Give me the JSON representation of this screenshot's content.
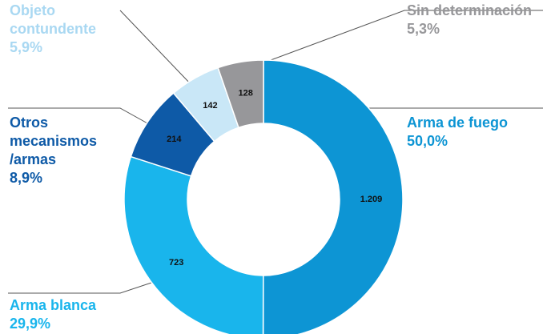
{
  "chart_data": {
    "type": "pie",
    "categories": [
      "Arma de fuego",
      "Arma blanca",
      "Otros mecanismos /armas",
      "Objeto contundente",
      "Sin determinación"
    ],
    "values": [
      1209,
      723,
      214,
      142,
      128
    ],
    "value_labels": [
      "1.209",
      "723",
      "214",
      "142",
      "128"
    ],
    "percentages": [
      50.0,
      29.9,
      8.9,
      5.9,
      5.3
    ],
    "percentage_labels": [
      "50,0%",
      "29,9%",
      "8,9%",
      "5,9%",
      "5,3%"
    ],
    "colors": [
      "#0d95d4",
      "#19b5ec",
      "#0e5aa7",
      "#c9e7f7",
      "#97979a"
    ],
    "label_colors": [
      "#0d95d4",
      "#19b5ec",
      "#0e5aa7",
      "#a9d8f2",
      "#97979a"
    ]
  }
}
